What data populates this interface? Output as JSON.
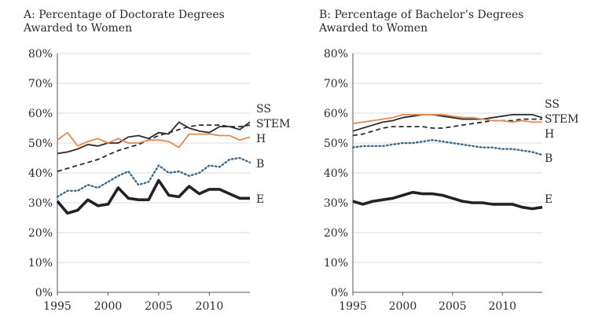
{
  "chart_data": [
    {
      "type": "line",
      "title_line1": "A: Percentage of Doctorate Degrees",
      "title_line2": "Awarded to Women",
      "xlabel": "",
      "ylabel": "",
      "xlim": [
        1995,
        2014
      ],
      "ylim": [
        0,
        80
      ],
      "x_ticks": [
        "1995",
        "2000",
        "2005",
        "2010"
      ],
      "y_ticks": [
        "0%",
        "10%",
        "20%",
        "30%",
        "40%",
        "50%",
        "60%",
        "70%",
        "80%"
      ],
      "grid": true,
      "x": [
        1995,
        1996,
        1997,
        1998,
        1999,
        2000,
        2001,
        2002,
        2003,
        2004,
        2005,
        2006,
        2007,
        2008,
        2009,
        2010,
        2011,
        2012,
        2013,
        2014
      ],
      "series": [
        {
          "name": "SS",
          "color": "#2b2b2b",
          "style": "solid",
          "values": [
            46.5,
            47,
            48,
            49.5,
            49,
            50,
            50,
            52,
            52.5,
            51.5,
            53.5,
            53,
            57,
            55,
            54,
            53.5,
            55.5,
            55.5,
            54.5,
            57
          ]
        },
        {
          "name": "STEM",
          "color": "#2b2b2b",
          "style": "dashed",
          "values": [
            40.5,
            41.5,
            42.5,
            43.5,
            44.5,
            46,
            47.5,
            48.5,
            49.5,
            51,
            52.5,
            53.5,
            54.5,
            55.5,
            56,
            56,
            56,
            55.5,
            55.5,
            56
          ]
        },
        {
          "name": "H",
          "color": "#e08a52",
          "style": "solid",
          "values": [
            51,
            53.5,
            49,
            50.5,
            51.5,
            50,
            51.5,
            50,
            50,
            51,
            51,
            50.5,
            48.5,
            53,
            53,
            53,
            52.5,
            52.5,
            51,
            52
          ]
        },
        {
          "name": "B",
          "color": "#3d6a8e",
          "style": "dotted",
          "values": [
            32,
            34,
            34,
            36,
            35,
            37,
            39,
            40.5,
            36,
            37,
            42.5,
            40,
            40.5,
            39,
            40,
            42.5,
            42,
            44.5,
            45,
            43.5
          ]
        },
        {
          "name": "E",
          "color": "#222222",
          "style": "thick",
          "values": [
            30.5,
            26.5,
            27.5,
            31,
            29,
            29.5,
            35,
            31.5,
            31,
            31,
            37.5,
            32.5,
            32,
            35.5,
            33,
            34.5,
            34.5,
            33,
            31.5,
            31.5
          ]
        }
      ]
    },
    {
      "type": "line",
      "title_line1": "B: Percentage of Bachelor’s Degrees",
      "title_line2": "Awarded to Women",
      "xlabel": "",
      "ylabel": "",
      "xlim": [
        1995,
        2014
      ],
      "ylim": [
        0,
        80
      ],
      "x_ticks": [
        "1995",
        "2000",
        "2005",
        "2010"
      ],
      "y_ticks": [
        "0%",
        "10%",
        "20%",
        "30%",
        "40%",
        "50%",
        "60%",
        "70%",
        "80%"
      ],
      "grid": true,
      "x": [
        1995,
        1996,
        1997,
        1998,
        1999,
        2000,
        2001,
        2002,
        2003,
        2004,
        2005,
        2006,
        2007,
        2008,
        2009,
        2010,
        2011,
        2012,
        2013,
        2014
      ],
      "series": [
        {
          "name": "SS",
          "color": "#2b2b2b",
          "style": "solid",
          "values": [
            54,
            55,
            56,
            57,
            57.5,
            58.5,
            59,
            59.5,
            59.5,
            59,
            58.5,
            58,
            58,
            58,
            58.5,
            59,
            59.5,
            59.5,
            59.5,
            58.5
          ]
        },
        {
          "name": "STEM",
          "color": "#2b2b2b",
          "style": "dashed",
          "values": [
            52.5,
            53,
            54,
            55,
            55.5,
            55.5,
            55.5,
            55.5,
            55,
            55,
            55.5,
            56,
            56.5,
            57,
            57.5,
            57.5,
            57.5,
            58,
            58,
            58
          ]
        },
        {
          "name": "H",
          "color": "#e08a52",
          "style": "solid",
          "values": [
            56.5,
            57,
            57.5,
            58,
            58.5,
            59.5,
            59.5,
            59.5,
            59.5,
            59.5,
            59,
            58.5,
            58.5,
            58,
            57.5,
            57.5,
            57,
            57.5,
            57,
            57
          ]
        },
        {
          "name": "B",
          "color": "#3d6a8e",
          "style": "dotted",
          "values": [
            48.5,
            49,
            49,
            49,
            49.5,
            50,
            50,
            50.5,
            51,
            50.5,
            50,
            49.5,
            49,
            48.5,
            48.5,
            48,
            48,
            47.5,
            47,
            46
          ]
        },
        {
          "name": "E",
          "color": "#222222",
          "style": "thick",
          "values": [
            30.5,
            29.5,
            30.5,
            31,
            31.5,
            32.5,
            33.5,
            33,
            33,
            32.5,
            31.5,
            30.5,
            30,
            30,
            29.5,
            29.5,
            29.5,
            28.5,
            28,
            28.5
          ]
        }
      ]
    }
  ]
}
